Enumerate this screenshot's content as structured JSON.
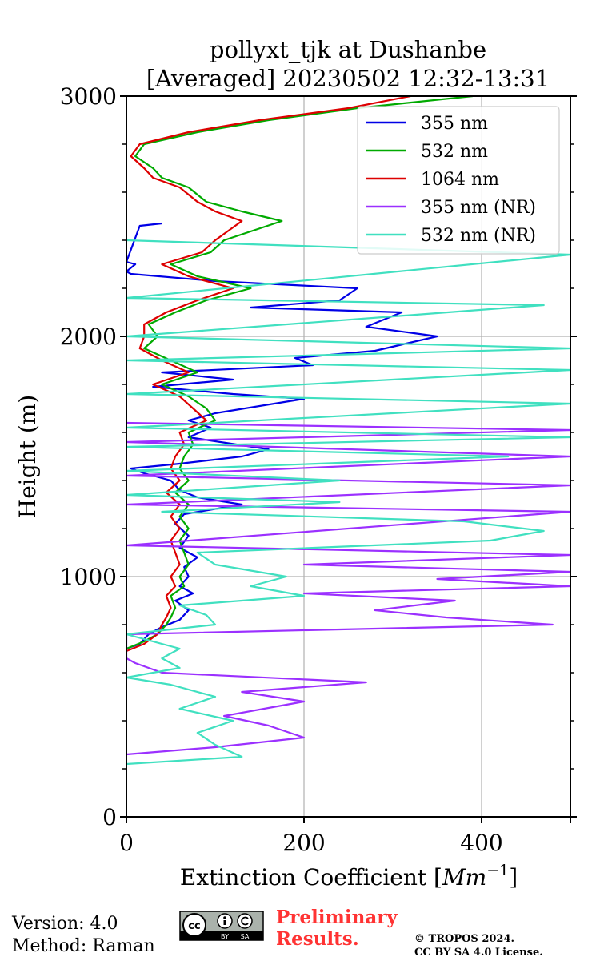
{
  "chart_data": {
    "type": "line",
    "title_line1": "pollyxt_tjk at Dushanbe",
    "title_line2": "[Averaged] 20230502 12:32-13:31",
    "xlabel": "Extinction Coefficient [",
    "xlabel_unit": "Mm",
    "xlabel_exp": "−1",
    "xlabel_end": "]",
    "ylabel": "Height (m)",
    "xlim": [
      0,
      500
    ],
    "ylim": [
      0,
      3000
    ],
    "xticks": [
      0,
      200,
      400
    ],
    "xtick_labels": [
      "0",
      "200",
      "400"
    ],
    "yticks": [
      0,
      1000,
      2000,
      3000
    ],
    "ytick_labels": [
      "0",
      "1000",
      "2000",
      "3000"
    ],
    "grid": true,
    "legend_position": "top-right",
    "series": [
      {
        "name": "355 nm",
        "color": "#0000e6",
        "points": [
          [
            0,
            700
          ],
          [
            15,
            720
          ],
          [
            25,
            760
          ],
          [
            40,
            790
          ],
          [
            60,
            820
          ],
          [
            70,
            860
          ],
          [
            55,
            900
          ],
          [
            75,
            930
          ],
          [
            60,
            960
          ],
          [
            70,
            1000
          ],
          [
            65,
            1040
          ],
          [
            80,
            1080
          ],
          [
            60,
            1120
          ],
          [
            70,
            1170
          ],
          [
            55,
            1220
          ],
          [
            65,
            1260
          ],
          [
            130,
            1300
          ],
          [
            80,
            1330
          ],
          [
            60,
            1360
          ],
          [
            50,
            1400
          ],
          [
            20,
            1430
          ],
          [
            5,
            1450
          ],
          [
            60,
            1470
          ],
          [
            130,
            1500
          ],
          [
            160,
            1530
          ],
          [
            70,
            1580
          ],
          [
            95,
            1620
          ],
          [
            70,
            1650
          ],
          [
            100,
            1680
          ],
          [
            200,
            1740
          ],
          [
            120,
            1760
          ],
          [
            30,
            1790
          ],
          [
            120,
            1820
          ],
          [
            40,
            1850
          ],
          [
            210,
            1880
          ],
          [
            190,
            1910
          ],
          [
            280,
            1940
          ],
          [
            350,
            2000
          ],
          [
            270,
            2040
          ],
          [
            310,
            2100
          ],
          [
            140,
            2120
          ],
          [
            240,
            2150
          ],
          [
            260,
            2200
          ],
          [
            100,
            2230
          ],
          [
            5,
            2260
          ],
          [
            0,
            2270
          ],
          [
            10,
            2300
          ],
          [
            0,
            2310
          ],
          [
            15,
            2460
          ],
          [
            40,
            2470
          ]
        ]
      },
      {
        "name": "532 nm",
        "color": "#00aa00",
        "points": [
          [
            0,
            700
          ],
          [
            20,
            730
          ],
          [
            35,
            760
          ],
          [
            45,
            800
          ],
          [
            50,
            830
          ],
          [
            55,
            870
          ],
          [
            50,
            920
          ],
          [
            65,
            960
          ],
          [
            60,
            1000
          ],
          [
            70,
            1050
          ],
          [
            65,
            1100
          ],
          [
            60,
            1150
          ],
          [
            70,
            1200
          ],
          [
            60,
            1250
          ],
          [
            70,
            1300
          ],
          [
            55,
            1350
          ],
          [
            70,
            1400
          ],
          [
            60,
            1450
          ],
          [
            65,
            1500
          ],
          [
            75,
            1550
          ],
          [
            70,
            1600
          ],
          [
            100,
            1650
          ],
          [
            90,
            1700
          ],
          [
            70,
            1750
          ],
          [
            40,
            1800
          ],
          [
            80,
            1850
          ],
          [
            50,
            1900
          ],
          [
            20,
            1950
          ],
          [
            35,
            2000
          ],
          [
            25,
            2050
          ],
          [
            55,
            2100
          ],
          [
            90,
            2150
          ],
          [
            140,
            2200
          ],
          [
            80,
            2250
          ],
          [
            50,
            2300
          ],
          [
            95,
            2350
          ],
          [
            110,
            2400
          ],
          [
            175,
            2480
          ],
          [
            130,
            2520
          ],
          [
            90,
            2560
          ],
          [
            70,
            2620
          ],
          [
            40,
            2660
          ],
          [
            30,
            2700
          ],
          [
            10,
            2750
          ],
          [
            20,
            2800
          ],
          [
            80,
            2850
          ],
          [
            160,
            2900
          ],
          [
            260,
            2950
          ],
          [
            390,
            3000
          ]
        ]
      },
      {
        "name": "1064 nm",
        "color": "#dd0000",
        "points": [
          [
            0,
            690
          ],
          [
            20,
            720
          ],
          [
            35,
            760
          ],
          [
            40,
            800
          ],
          [
            45,
            830
          ],
          [
            50,
            870
          ],
          [
            45,
            920
          ],
          [
            55,
            960
          ],
          [
            50,
            1000
          ],
          [
            60,
            1050
          ],
          [
            55,
            1100
          ],
          [
            50,
            1150
          ],
          [
            60,
            1200
          ],
          [
            50,
            1250
          ],
          [
            60,
            1300
          ],
          [
            45,
            1350
          ],
          [
            60,
            1400
          ],
          [
            50,
            1450
          ],
          [
            55,
            1500
          ],
          [
            65,
            1550
          ],
          [
            60,
            1600
          ],
          [
            90,
            1650
          ],
          [
            75,
            1700
          ],
          [
            60,
            1750
          ],
          [
            30,
            1800
          ],
          [
            70,
            1850
          ],
          [
            40,
            1900
          ],
          [
            15,
            1950
          ],
          [
            20,
            2000
          ],
          [
            20,
            2050
          ],
          [
            45,
            2100
          ],
          [
            80,
            2150
          ],
          [
            120,
            2200
          ],
          [
            70,
            2250
          ],
          [
            40,
            2300
          ],
          [
            85,
            2350
          ],
          [
            100,
            2400
          ],
          [
            130,
            2480
          ],
          [
            100,
            2520
          ],
          [
            80,
            2560
          ],
          [
            60,
            2620
          ],
          [
            30,
            2660
          ],
          [
            20,
            2700
          ],
          [
            5,
            2750
          ],
          [
            15,
            2800
          ],
          [
            70,
            2850
          ],
          [
            150,
            2900
          ],
          [
            250,
            2950
          ],
          [
            320,
            3000
          ]
        ]
      },
      {
        "name": "355 nm (NR)",
        "color": "#9b30ff",
        "points": [
          [
            0,
            260
          ],
          [
            100,
            290
          ],
          [
            200,
            330
          ],
          [
            160,
            380
          ],
          [
            110,
            420
          ],
          [
            200,
            480
          ],
          [
            130,
            520
          ],
          [
            270,
            560
          ],
          [
            40,
            600
          ],
          [
            10,
            640
          ],
          [
            0,
            660
          ],
          [
            0,
            760
          ],
          [
            480,
            800
          ],
          [
            360,
            830
          ],
          [
            280,
            860
          ],
          [
            370,
            900
          ],
          [
            200,
            930
          ],
          [
            500,
            960
          ],
          [
            350,
            990
          ],
          [
            500,
            1020
          ],
          [
            200,
            1050
          ],
          [
            500,
            1090
          ],
          [
            0,
            1130
          ],
          [
            500,
            1270
          ],
          [
            0,
            1300
          ],
          [
            500,
            1380
          ],
          [
            0,
            1420
          ],
          [
            500,
            1500
          ],
          [
            0,
            1560
          ],
          [
            500,
            1610
          ],
          [
            0,
            1640
          ]
        ]
      },
      {
        "name": "532 nm (NR)",
        "color": "#40e0c0",
        "points": [
          [
            0,
            220
          ],
          [
            130,
            250
          ],
          [
            100,
            300
          ],
          [
            80,
            350
          ],
          [
            120,
            400
          ],
          [
            60,
            450
          ],
          [
            100,
            500
          ],
          [
            50,
            550
          ],
          [
            0,
            580
          ],
          [
            60,
            620
          ],
          [
            40,
            660
          ],
          [
            60,
            700
          ],
          [
            0,
            760
          ],
          [
            100,
            800
          ],
          [
            90,
            840
          ],
          [
            60,
            880
          ],
          [
            200,
            920
          ],
          [
            140,
            960
          ],
          [
            180,
            1000
          ],
          [
            100,
            1050
          ],
          [
            80,
            1100
          ],
          [
            410,
            1150
          ],
          [
            470,
            1190
          ],
          [
            380,
            1230
          ],
          [
            40,
            1270
          ],
          [
            240,
            1310
          ],
          [
            0,
            1340
          ],
          [
            240,
            1400
          ],
          [
            0,
            1440
          ],
          [
            430,
            1500
          ],
          [
            0,
            1540
          ],
          [
            500,
            1580
          ],
          [
            0,
            1620
          ],
          [
            500,
            1720
          ],
          [
            0,
            1760
          ],
          [
            500,
            1860
          ],
          [
            0,
            1900
          ],
          [
            500,
            1950
          ],
          [
            0,
            2000
          ],
          [
            470,
            2130
          ],
          [
            0,
            2160
          ],
          [
            500,
            2340
          ],
          [
            0,
            2400
          ]
        ]
      }
    ]
  },
  "footer": {
    "version": "Version: 4.0",
    "method": "Method: Raman",
    "preliminary_line1": "Preliminary",
    "preliminary_line2": "Results.",
    "copyright_line1": "© TROPOS 2024.",
    "copyright_line2": "CC BY SA 4.0 License.",
    "license_badge_text": "BY",
    "license_badge_text2": "SA",
    "license_cc": "cc",
    "preliminary_color": "#ff3333"
  }
}
